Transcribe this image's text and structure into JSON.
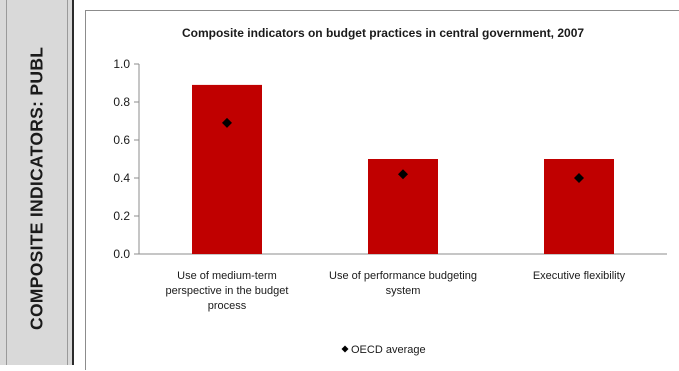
{
  "side_panel": {
    "title": "COMPOSITE INDICATORS: PUBL"
  },
  "chart_data": {
    "type": "bar",
    "title": "Composite indicators on budget practices in central government, 2007",
    "categories": [
      [
        "Use of medium-term",
        "perspective in the budget",
        "process"
      ],
      [
        "Use of performance budgeting",
        "system"
      ],
      [
        "Executive flexibility"
      ]
    ],
    "series": [
      {
        "values": [
          0.89,
          0.5,
          0.5
        ],
        "color": "#c00000"
      },
      {
        "name": "OECD average",
        "values": [
          0.69,
          0.42,
          0.4
        ],
        "marker": "diamond",
        "color": "#000000"
      }
    ],
    "yticks": [
      "0.0",
      "0.2",
      "0.4",
      "0.6",
      "0.8",
      "1.0"
    ],
    "ylim": [
      0,
      1.0
    ],
    "grid": false,
    "legend": "bottom-center",
    "xlabel": "",
    "ylabel": ""
  }
}
